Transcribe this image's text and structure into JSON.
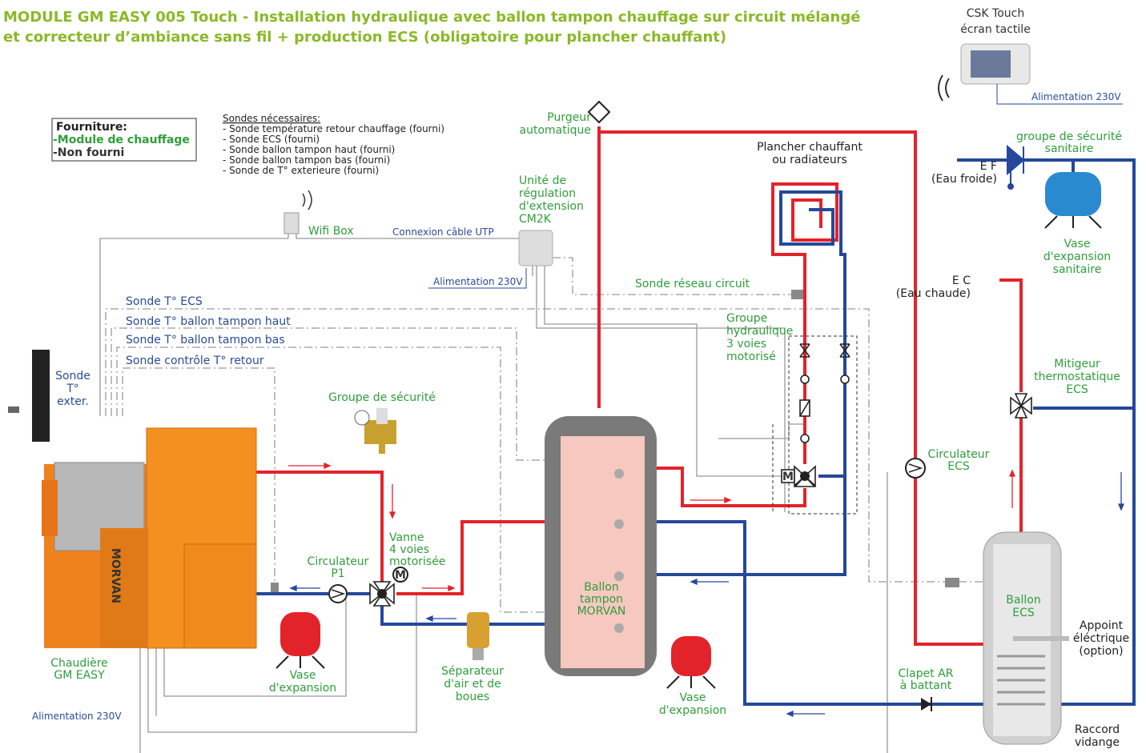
{
  "title": {
    "line1": "MODULE GM EASY 005 Touch - Installation hydraulique avec ballon tampon chauffage sur circuit mélangé",
    "line2": "et correcteur d’ambiance sans fil + production ECS (obligatoire pour plancher chauffant)"
  },
  "csk_touch": {
    "name": "CSK Touch",
    "desc": "écran tactile",
    "power": "Alimentation 230V"
  },
  "supply_legend": {
    "heading": "Fourniture:",
    "supplied": "-Module de chauffage",
    "not_supplied": "-Non fourni"
  },
  "sensors_needed": {
    "heading": "Sondes nécessaires:",
    "items": [
      "- Sonde température retour chauffage (fourni)",
      "- Sonde ECS (fourni)",
      "- Sonde ballon tampon haut (fourni)",
      "- Sonde ballon tampon bas (fourni)",
      "- Sonde de T° exterieure (fourni)"
    ]
  },
  "components": {
    "purgeur": [
      "Purgeur",
      "automatique"
    ],
    "cm2k": [
      "Unité de",
      "régulation",
      "d'extension",
      "CM2K"
    ],
    "wifi_box": [
      "Wifi Box"
    ],
    "utp": [
      "Connexion câble UTP"
    ],
    "cm2k_power": [
      "Alimentation 230V"
    ],
    "sonde_reseau": [
      "Sonde réseau circuit"
    ],
    "plancher": [
      "Plancher chauffant",
      "ou radiateurs"
    ],
    "groupe_hydraulique": [
      "Groupe",
      "hydraulique",
      "3 voies",
      "motorisé"
    ],
    "sonde_ecs": [
      "Sonde T° ECS"
    ],
    "sonde_haut": [
      "Sonde T° ballon tampon haut"
    ],
    "sonde_bas": [
      "Sonde T° ballon tampon bas"
    ],
    "sonde_retour": [
      "Sonde contrôle T° retour"
    ],
    "sonde_ext": [
      "Sonde",
      "T°",
      "exter."
    ],
    "groupe_securite": [
      "Groupe de sécurité"
    ],
    "vanne": [
      "Vanne",
      "4 voies",
      "motorisée"
    ],
    "circulateur_p1": [
      "Circulateur",
      "P1"
    ],
    "ballon_tampon": [
      "Ballon",
      "tampon",
      "MORVAN"
    ],
    "vase_1": [
      "Vase",
      "d'expansion"
    ],
    "separateur": [
      "Séparateur",
      "d'air et de",
      "boues"
    ],
    "vase_2": [
      "Vase",
      "d'expansion"
    ],
    "chaudiere": [
      "Chaudière",
      "GM EASY"
    ],
    "chaudiere_power": [
      "Alimentation 230V"
    ],
    "boiler_brand": [
      "MORVAN"
    ],
    "groupe_securite_sanitaire": [
      "groupe de sécurité",
      "sanitaire"
    ],
    "eau_froide": [
      "E F",
      "(Eau froide)"
    ],
    "vase_sanitaire": [
      "Vase",
      "d'expansion",
      "sanitaire"
    ],
    "eau_chaude": [
      "E C",
      "(Eau chaude)"
    ],
    "mitigeur": [
      "Mitigeur",
      "thermostatique",
      "ECS"
    ],
    "circulateur_ecs": [
      "Circulateur",
      "ECS"
    ],
    "ballon_ecs": [
      "Ballon",
      "ECS"
    ],
    "appoint": [
      "Appoint",
      "éléctrique",
      "(option)"
    ],
    "clapet": [
      "Clapet AR",
      "à battant"
    ],
    "raccord": [
      "Raccord",
      "vidange"
    ]
  }
}
